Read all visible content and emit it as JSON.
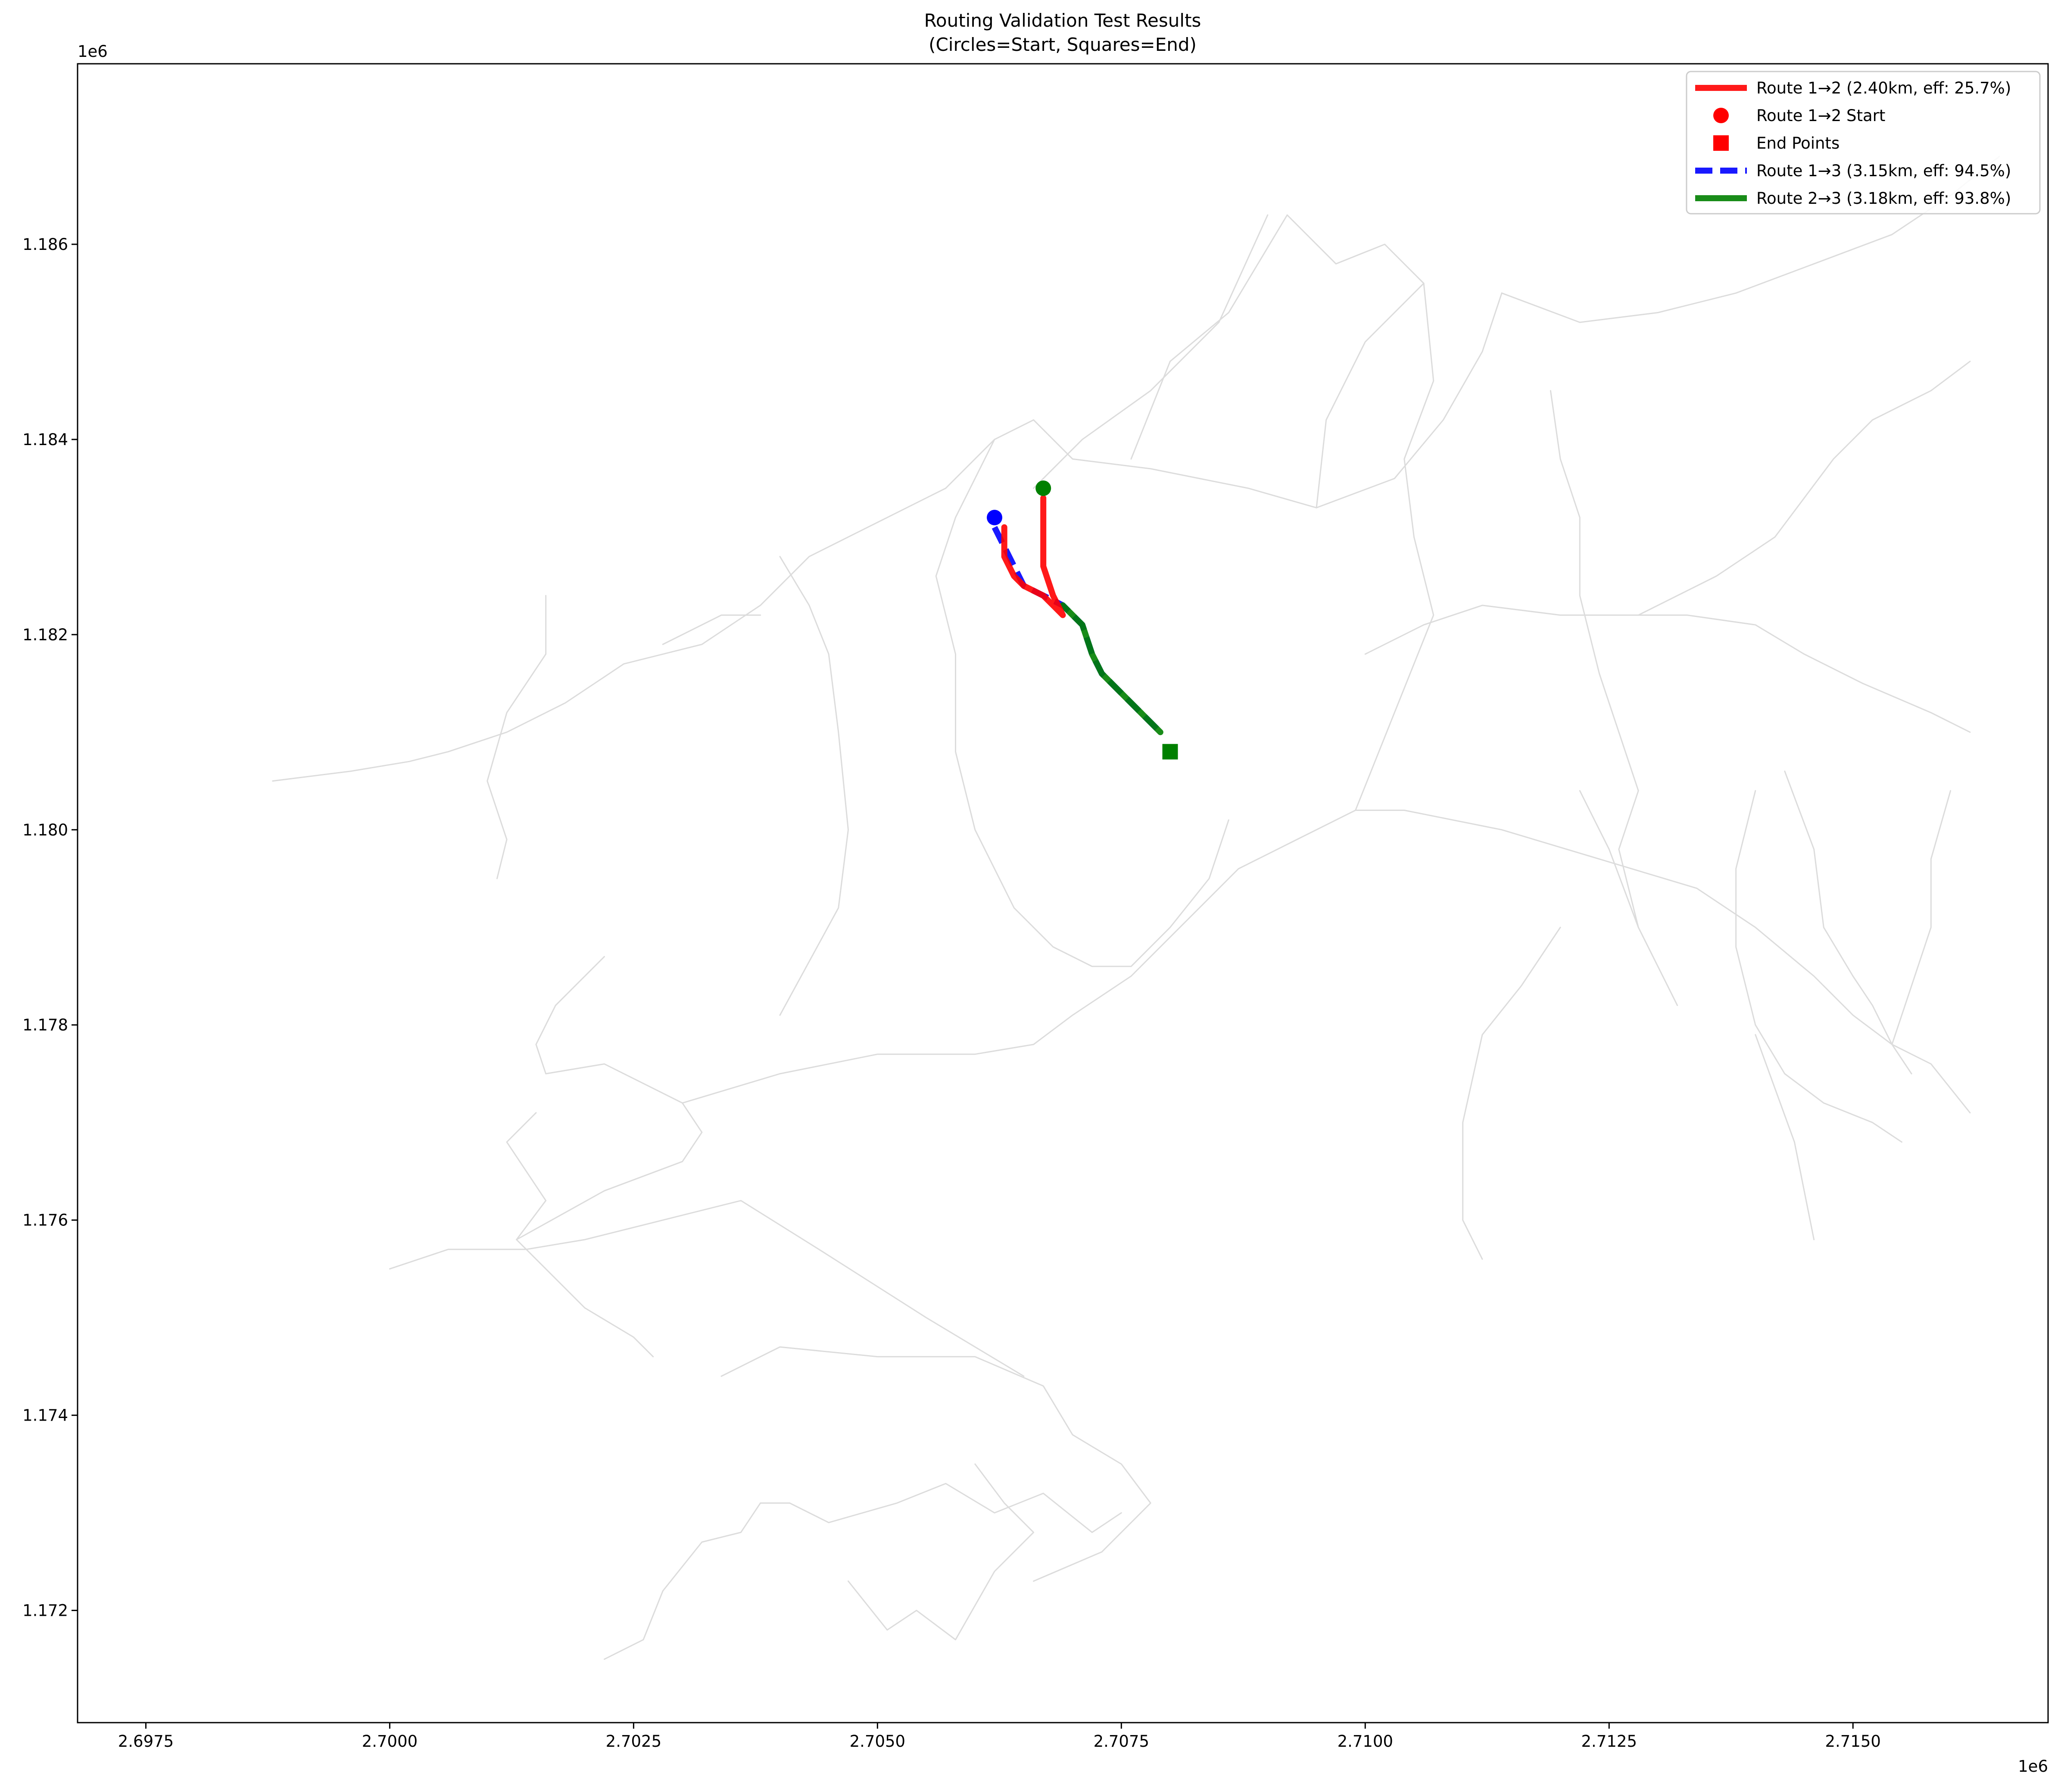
{
  "chart_data": {
    "type": "line",
    "title": "Routing Validation Test Results",
    "subtitle": "(Circles=Start, Squares=End)",
    "xlabel": "",
    "ylabel": "",
    "x_offset_label": "1e6",
    "y_offset_label": "1e6",
    "xlim": [
      2.6968,
      2.717
    ],
    "ylim": [
      1.17085,
      1.18785
    ],
    "x_ticks": [
      {
        "value": 2.6975,
        "label": "2.6975"
      },
      {
        "value": 2.7,
        "label": "2.7000"
      },
      {
        "value": 2.7025,
        "label": "2.7025"
      },
      {
        "value": 2.705,
        "label": "2.7050"
      },
      {
        "value": 2.7075,
        "label": "2.7075"
      },
      {
        "value": 2.71,
        "label": "2.7100"
      },
      {
        "value": 2.7125,
        "label": "2.7125"
      },
      {
        "value": 2.715,
        "label": "2.7150"
      }
    ],
    "y_ticks": [
      {
        "value": 1.172,
        "label": "1.172"
      },
      {
        "value": 1.174,
        "label": "1.174"
      },
      {
        "value": 1.176,
        "label": "1.176"
      },
      {
        "value": 1.178,
        "label": "1.178"
      },
      {
        "value": 1.18,
        "label": "1.180"
      },
      {
        "value": 1.182,
        "label": "1.182"
      },
      {
        "value": 1.184,
        "label": "1.184"
      },
      {
        "value": 1.186,
        "label": "1.186"
      }
    ],
    "grid": false,
    "legend_position": "top-right",
    "legend": [
      {
        "kind": "line",
        "label": "Route 1→2 (2.40km, eff: 25.7%)",
        "color": "#ff0000",
        "dashed": false
      },
      {
        "kind": "circle",
        "label": "Route 1→2 Start",
        "color": "#ff0000"
      },
      {
        "kind": "square",
        "label": "End Points",
        "color": "#ff0000"
      },
      {
        "kind": "line",
        "label": "Route 1→3 (3.15km, eff: 94.5%)",
        "color": "#0000ff",
        "dashed": true
      },
      {
        "kind": "line",
        "label": "Route 2→3 (3.18km, eff: 93.8%)",
        "color": "#008000",
        "dashed": false
      }
    ],
    "road_color": "#dcdcdc",
    "road_network": [
      [
        [
          2.7022,
          1.1715
        ],
        [
          2.7026,
          1.1717
        ],
        [
          2.7028,
          1.1722
        ],
        [
          2.7032,
          1.1727
        ],
        [
          2.7036,
          1.1728
        ],
        [
          2.7038,
          1.1731
        ],
        [
          2.7041,
          1.1731
        ],
        [
          2.7045,
          1.1729
        ],
        [
          2.7052,
          1.1731
        ],
        [
          2.7057,
          1.1733
        ],
        [
          2.7062,
          1.173
        ],
        [
          2.7067,
          1.1732
        ],
        [
          2.7072,
          1.1728
        ],
        [
          2.7075,
          1.173
        ]
      ],
      [
        [
          2.7034,
          1.1744
        ],
        [
          2.704,
          1.1747
        ],
        [
          2.705,
          1.1746
        ],
        [
          2.706,
          1.1746
        ],
        [
          2.7067,
          1.1743
        ],
        [
          2.707,
          1.1738
        ],
        [
          2.7075,
          1.1735
        ],
        [
          2.7078,
          1.1731
        ],
        [
          2.7073,
          1.1726
        ],
        [
          2.7066,
          1.1723
        ]
      ],
      [
        [
          2.706,
          1.1735
        ],
        [
          2.7063,
          1.1731
        ],
        [
          2.7066,
          1.1728
        ],
        [
          2.7062,
          1.1724
        ],
        [
          2.7058,
          1.1717
        ],
        [
          2.7054,
          1.172
        ],
        [
          2.7051,
          1.1718
        ],
        [
          2.7047,
          1.1723
        ]
      ],
      [
        [
          2.7,
          1.1755
        ],
        [
          2.7006,
          1.1757
        ],
        [
          2.7014,
          1.1757
        ],
        [
          2.702,
          1.1758
        ],
        [
          2.7028,
          1.176
        ],
        [
          2.7036,
          1.1762
        ],
        [
          2.7044,
          1.1757
        ],
        [
          2.7055,
          1.175
        ],
        [
          2.7065,
          1.1744
        ]
      ],
      [
        [
          2.7013,
          1.1758
        ],
        [
          2.702,
          1.1751
        ],
        [
          2.7025,
          1.1748
        ],
        [
          2.7027,
          1.1746
        ]
      ],
      [
        [
          2.7013,
          1.1758
        ],
        [
          2.7022,
          1.1763
        ],
        [
          2.703,
          1.1766
        ],
        [
          2.7032,
          1.1769
        ],
        [
          2.703,
          1.1772
        ],
        [
          2.7022,
          1.1776
        ],
        [
          2.7016,
          1.1775
        ],
        [
          2.7015,
          1.1778
        ],
        [
          2.7017,
          1.1782
        ],
        [
          2.7022,
          1.1787
        ]
      ],
      [
        [
          2.7015,
          1.1771
        ],
        [
          2.7012,
          1.1768
        ],
        [
          2.7016,
          1.1762
        ],
        [
          2.7013,
          1.1758
        ]
      ],
      [
        [
          2.703,
          1.1772
        ],
        [
          2.704,
          1.1775
        ],
        [
          2.705,
          1.1777
        ],
        [
          2.706,
          1.1777
        ],
        [
          2.7066,
          1.1778
        ],
        [
          2.707,
          1.1781
        ],
        [
          2.7076,
          1.1785
        ],
        [
          2.7081,
          1.179
        ],
        [
          2.7087,
          1.1796
        ],
        [
          2.7093,
          1.1799
        ],
        [
          2.7099,
          1.1802
        ],
        [
          2.7104,
          1.1802
        ],
        [
          2.7114,
          1.18
        ],
        [
          2.7124,
          1.1797
        ],
        [
          2.7134,
          1.1794
        ],
        [
          2.714,
          1.179
        ],
        [
          2.7146,
          1.1785
        ],
        [
          2.715,
          1.1781
        ],
        [
          2.7154,
          1.1778
        ],
        [
          2.7158,
          1.1776
        ],
        [
          2.7162,
          1.1771
        ]
      ],
      [
        [
          2.6988,
          1.1805
        ],
        [
          2.6996,
          1.1806
        ],
        [
          2.7002,
          1.1807
        ],
        [
          2.7006,
          1.1808
        ],
        [
          2.7012,
          1.181
        ],
        [
          2.7018,
          1.1813
        ],
        [
          2.7024,
          1.1817
        ],
        [
          2.7032,
          1.1819
        ],
        [
          2.7038,
          1.1823
        ],
        [
          2.7043,
          1.1828
        ],
        [
          2.7049,
          1.1831
        ],
        [
          2.7057,
          1.1835
        ],
        [
          2.7062,
          1.184
        ],
        [
          2.7066,
          1.1842
        ]
      ],
      [
        [
          2.7066,
          1.1842
        ],
        [
          2.707,
          1.1838
        ],
        [
          2.7078,
          1.1837
        ],
        [
          2.7088,
          1.1835
        ],
        [
          2.7095,
          1.1833
        ],
        [
          2.7103,
          1.1836
        ],
        [
          2.7108,
          1.1842
        ],
        [
          2.7112,
          1.1849
        ],
        [
          2.7114,
          1.1855
        ]
      ],
      [
        [
          2.7076,
          1.1838
        ],
        [
          2.708,
          1.1848
        ],
        [
          2.7086,
          1.1853
        ],
        [
          2.7092,
          1.1863
        ],
        [
          2.7097,
          1.1858
        ],
        [
          2.7102,
          1.186
        ],
        [
          2.7106,
          1.1856
        ],
        [
          2.7107,
          1.1846
        ],
        [
          2.7104,
          1.1838
        ],
        [
          2.7105,
          1.183
        ],
        [
          2.7107,
          1.1822
        ],
        [
          2.7103,
          1.1812
        ],
        [
          2.7099,
          1.1802
        ]
      ],
      [
        [
          2.7095,
          1.1833
        ],
        [
          2.7096,
          1.1842
        ],
        [
          2.71,
          1.185
        ],
        [
          2.7106,
          1.1856
        ]
      ],
      [
        [
          2.709,
          1.1863
        ],
        [
          2.7085,
          1.1852
        ],
        [
          2.7078,
          1.1845
        ],
        [
          2.7071,
          1.184
        ],
        [
          2.7066,
          1.1835
        ]
      ],
      [
        [
          2.7062,
          1.184
        ],
        [
          2.7058,
          1.1832
        ],
        [
          2.7056,
          1.1826
        ],
        [
          2.7058,
          1.1818
        ],
        [
          2.7058,
          1.1808
        ],
        [
          2.706,
          1.18
        ],
        [
          2.7064,
          1.1792
        ],
        [
          2.7068,
          1.1788
        ],
        [
          2.7072,
          1.1786
        ],
        [
          2.7076,
          1.1786
        ],
        [
          2.708,
          1.179
        ],
        [
          2.7084,
          1.1795
        ],
        [
          2.7086,
          1.1801
        ]
      ],
      [
        [
          2.704,
          1.1781
        ],
        [
          2.7046,
          1.1792
        ],
        [
          2.7047,
          1.18
        ],
        [
          2.7046,
          1.181
        ],
        [
          2.7045,
          1.1818
        ],
        [
          2.7043,
          1.1823
        ],
        [
          2.704,
          1.1828
        ]
      ],
      [
        [
          2.7011,
          1.1795
        ],
        [
          2.7012,
          1.1799
        ],
        [
          2.701,
          1.1805
        ],
        [
          2.7012,
          1.1812
        ],
        [
          2.7016,
          1.1818
        ],
        [
          2.7016,
          1.1824
        ]
      ],
      [
        [
          2.7028,
          1.1819
        ],
        [
          2.703,
          1.182
        ],
        [
          2.7034,
          1.1822
        ],
        [
          2.7038,
          1.1822
        ]
      ],
      [
        [
          2.71,
          1.1818
        ],
        [
          2.7106,
          1.1821
        ],
        [
          2.7112,
          1.1823
        ],
        [
          2.712,
          1.1822
        ],
        [
          2.7127,
          1.1822
        ],
        [
          2.7133,
          1.1822
        ],
        [
          2.714,
          1.1821
        ],
        [
          2.7145,
          1.1818
        ],
        [
          2.7151,
          1.1815
        ],
        [
          2.7158,
          1.1812
        ],
        [
          2.7162,
          1.181
        ]
      ],
      [
        [
          2.7128,
          1.1822
        ],
        [
          2.7136,
          1.1826
        ],
        [
          2.7142,
          1.183
        ],
        [
          2.7148,
          1.1838
        ],
        [
          2.7152,
          1.1842
        ],
        [
          2.7158,
          1.1845
        ],
        [
          2.7162,
          1.1848
        ]
      ],
      [
        [
          2.7114,
          1.1855
        ],
        [
          2.7122,
          1.1852
        ],
        [
          2.713,
          1.1853
        ],
        [
          2.7138,
          1.1855
        ],
        [
          2.7146,
          1.1858
        ],
        [
          2.7154,
          1.1861
        ],
        [
          2.716,
          1.1865
        ],
        [
          2.7165,
          1.1869
        ]
      ],
      [
        [
          2.7119,
          1.1845
        ],
        [
          2.712,
          1.1838
        ],
        [
          2.7122,
          1.1832
        ],
        [
          2.7122,
          1.1824
        ],
        [
          2.7124,
          1.1816
        ],
        [
          2.7126,
          1.181
        ],
        [
          2.7128,
          1.1804
        ],
        [
          2.7126,
          1.1798
        ],
        [
          2.7128,
          1.179
        ],
        [
          2.713,
          1.1786
        ],
        [
          2.7132,
          1.1782
        ]
      ],
      [
        [
          2.7122,
          1.1804
        ],
        [
          2.7125,
          1.1798
        ],
        [
          2.7128,
          1.179
        ]
      ],
      [
        [
          2.7143,
          1.1806
        ],
        [
          2.7146,
          1.1798
        ],
        [
          2.7147,
          1.179
        ],
        [
          2.715,
          1.1785
        ],
        [
          2.7152,
          1.1782
        ],
        [
          2.7154,
          1.1778
        ],
        [
          2.7156,
          1.1775
        ]
      ],
      [
        [
          2.714,
          1.1804
        ],
        [
          2.7138,
          1.1796
        ],
        [
          2.7138,
          1.1788
        ],
        [
          2.714,
          1.178
        ],
        [
          2.7143,
          1.1775
        ],
        [
          2.7147,
          1.1772
        ],
        [
          2.7152,
          1.177
        ],
        [
          2.7155,
          1.1768
        ]
      ],
      [
        [
          2.716,
          1.1804
        ],
        [
          2.7158,
          1.1797
        ],
        [
          2.7158,
          1.179
        ],
        [
          2.7156,
          1.1784
        ],
        [
          2.7154,
          1.1778
        ]
      ],
      [
        [
          2.714,
          1.1779
        ],
        [
          2.7144,
          1.1768
        ],
        [
          2.7146,
          1.1758
        ]
      ],
      [
        [
          2.712,
          1.179
        ],
        [
          2.7116,
          1.1784
        ],
        [
          2.7112,
          1.1779
        ],
        [
          2.711,
          1.177
        ],
        [
          2.711,
          1.176
        ],
        [
          2.7112,
          1.1756
        ]
      ]
    ],
    "series": [
      {
        "name": "Route 1→3 (3.15km, eff: 94.5%)",
        "color": "#0000ff",
        "dashed": true,
        "points": [
          [
            2.7062,
            1.1831
          ],
          [
            2.7063,
            1.1829
          ],
          [
            2.7065,
            1.1825
          ],
          [
            2.7067,
            1.1824
          ],
          [
            2.7069,
            1.1823
          ],
          [
            2.7071,
            1.1821
          ],
          [
            2.7072,
            1.1818
          ],
          [
            2.7073,
            1.1816
          ],
          [
            2.7075,
            1.1814
          ],
          [
            2.7077,
            1.1812
          ],
          [
            2.7079,
            1.181
          ]
        ]
      },
      {
        "name": "Route 2→3 (3.18km, eff: 93.8%)",
        "color": "#008000",
        "dashed": false,
        "points": [
          [
            2.7069,
            1.1823
          ],
          [
            2.7071,
            1.1821
          ],
          [
            2.7072,
            1.1818
          ],
          [
            2.7073,
            1.1816
          ],
          [
            2.7075,
            1.1814
          ],
          [
            2.7077,
            1.1812
          ],
          [
            2.7079,
            1.181
          ]
        ]
      },
      {
        "name": "Route 1→2 (2.40km, eff: 25.7%)",
        "color": "#ff0000",
        "dashed": false,
        "points": [
          [
            2.7063,
            1.1831
          ],
          [
            2.7063,
            1.1828
          ],
          [
            2.7064,
            1.1826
          ],
          [
            2.7065,
            1.1825
          ],
          [
            2.7067,
            1.1824
          ],
          [
            2.7068,
            1.1823
          ],
          [
            2.7069,
            1.1822
          ],
          [
            2.7068,
            1.1824
          ],
          [
            2.7067,
            1.1827
          ],
          [
            2.7067,
            1.183
          ],
          [
            2.7067,
            1.1834
          ]
        ]
      }
    ],
    "markers": [
      {
        "name": "start-1",
        "shape": "circle",
        "color": "#0000ff",
        "x": 2.7062,
        "y": 1.1832
      },
      {
        "name": "start-2",
        "shape": "circle",
        "color": "#008000",
        "x": 2.7067,
        "y": 1.1835
      },
      {
        "name": "end-3",
        "shape": "square",
        "color": "#008000",
        "x": 2.708,
        "y": 1.1808
      }
    ]
  }
}
